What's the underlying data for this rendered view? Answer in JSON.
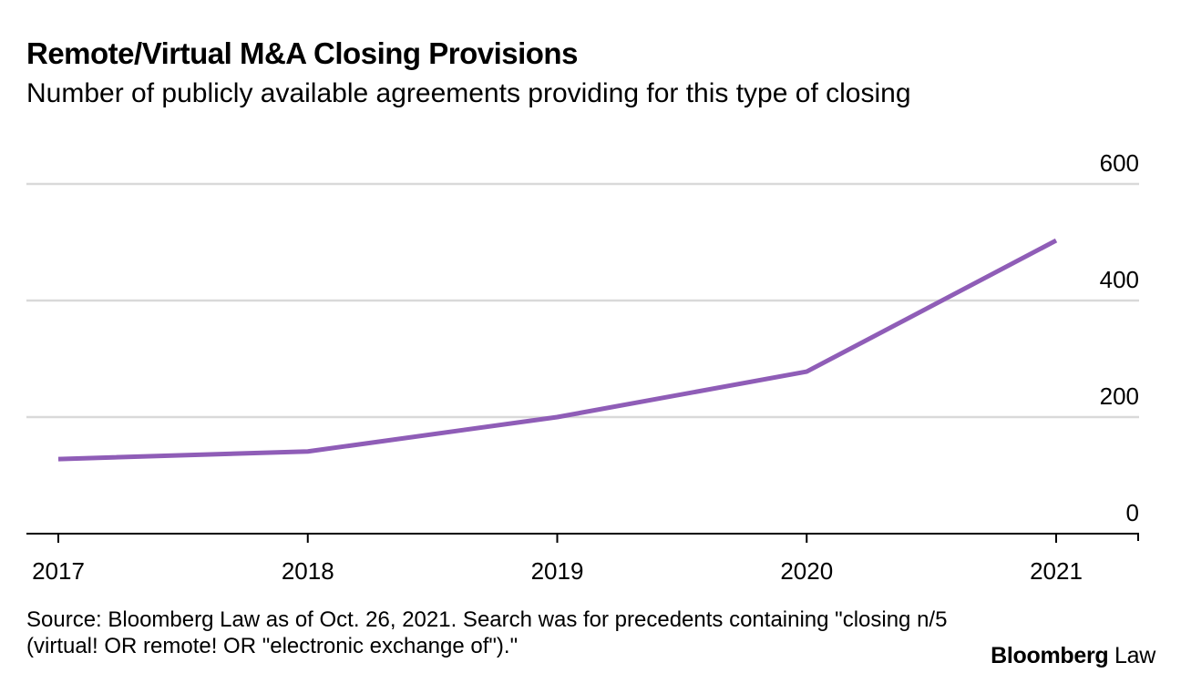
{
  "header": {
    "title": "Remote/Virtual M&A Closing Provisions",
    "subtitle": "Number of publicly available agreements providing for this type of closing"
  },
  "chart_data": {
    "type": "line",
    "x": [
      2017,
      2018,
      2019,
      2020,
      2021
    ],
    "x_tick_labels": [
      "2017",
      "2018",
      "2019",
      "2020",
      "2021"
    ],
    "series": [
      {
        "values": [
          128,
          141,
          200,
          278,
          503
        ],
        "color": "#8f5db7"
      }
    ],
    "y_ticks": [
      0,
      200,
      400,
      600
    ],
    "y_tick_labels": [
      "0",
      "200",
      "400",
      "600"
    ],
    "ylim": [
      0,
      600
    ],
    "y_axis_side": "right",
    "grid": true,
    "grid_color": "#d9d9d9",
    "axis_color": "#000000"
  },
  "footer": {
    "source": "Source: Bloomberg Law as of Oct. 26, 2021. Search was for precedents containing \"closing n/5 (virtual! OR remote! OR \"electronic exchange of\").\"",
    "brand_bold": "Bloomberg",
    "brand_light": "Law"
  }
}
